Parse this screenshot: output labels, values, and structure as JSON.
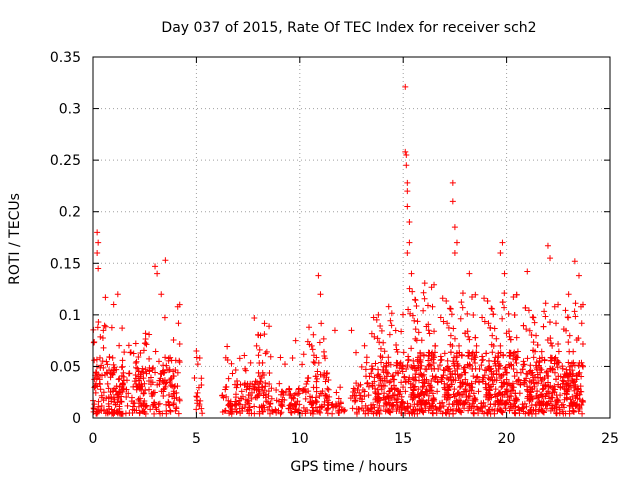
{
  "chart_data": {
    "type": "scatter",
    "title": "Day 037 of 2015, Rate Of TEC Index for receiver sch2",
    "xlabel": "GPS time / hours",
    "ylabel": "ROTI / TECUs",
    "xlim": [
      0,
      25
    ],
    "ylim": [
      0,
      0.35
    ],
    "xticks": [
      0,
      5,
      10,
      15,
      20,
      25
    ],
    "yticks": [
      0,
      0.05,
      0.1,
      0.15,
      0.2,
      0.25,
      0.3,
      0.35
    ],
    "grid": true,
    "marker": "+",
    "color": "#ff0000",
    "notable_points": [
      {
        "x": 0.2,
        "y": 0.18
      },
      {
        "x": 0.25,
        "y": 0.17
      },
      {
        "x": 0.2,
        "y": 0.16
      },
      {
        "x": 0.25,
        "y": 0.145
      },
      {
        "x": 0.5,
        "y": 0.085
      },
      {
        "x": 0.6,
        "y": 0.117
      },
      {
        "x": 1.0,
        "y": 0.11
      },
      {
        "x": 1.2,
        "y": 0.12
      },
      {
        "x": 3.0,
        "y": 0.147
      },
      {
        "x": 3.1,
        "y": 0.14
      },
      {
        "x": 3.5,
        "y": 0.153
      },
      {
        "x": 3.3,
        "y": 0.12
      },
      {
        "x": 10.9,
        "y": 0.138
      },
      {
        "x": 11.0,
        "y": 0.12
      },
      {
        "x": 13.8,
        "y": 0.1
      },
      {
        "x": 14.3,
        "y": 0.108
      },
      {
        "x": 15.1,
        "y": 0.321
      },
      {
        "x": 15.1,
        "y": 0.258
      },
      {
        "x": 15.15,
        "y": 0.255
      },
      {
        "x": 15.15,
        "y": 0.245
      },
      {
        "x": 15.2,
        "y": 0.228
      },
      {
        "x": 15.2,
        "y": 0.22
      },
      {
        "x": 15.2,
        "y": 0.205
      },
      {
        "x": 15.3,
        "y": 0.19
      },
      {
        "x": 15.3,
        "y": 0.17
      },
      {
        "x": 15.2,
        "y": 0.16
      },
      {
        "x": 15.4,
        "y": 0.14
      },
      {
        "x": 17.4,
        "y": 0.228
      },
      {
        "x": 17.4,
        "y": 0.21
      },
      {
        "x": 17.5,
        "y": 0.185
      },
      {
        "x": 17.5,
        "y": 0.16
      },
      {
        "x": 17.6,
        "y": 0.17
      },
      {
        "x": 18.2,
        "y": 0.14
      },
      {
        "x": 19.8,
        "y": 0.17
      },
      {
        "x": 19.7,
        "y": 0.16
      },
      {
        "x": 19.9,
        "y": 0.14
      },
      {
        "x": 21.0,
        "y": 0.142
      },
      {
        "x": 22.0,
        "y": 0.167
      },
      {
        "x": 22.1,
        "y": 0.155
      },
      {
        "x": 23.3,
        "y": 0.152
      },
      {
        "x": 23.5,
        "y": 0.138
      },
      {
        "x": 23.0,
        "y": 0.12
      },
      {
        "x": 7.8,
        "y": 0.097
      },
      {
        "x": 8.1,
        "y": 0.08
      },
      {
        "x": 9.8,
        "y": 0.075
      },
      {
        "x": 11.7,
        "y": 0.085
      },
      {
        "x": 12.5,
        "y": 0.085
      },
      {
        "x": 5.0,
        "y": 0.065
      }
    ],
    "segments": [
      {
        "t0": 0.0,
        "t1": 1.5,
        "density": 7,
        "base": 0.055,
        "peak": 0.09
      },
      {
        "t0": 1.5,
        "t1": 3.0,
        "density": 5,
        "base": 0.045,
        "peak": 0.08
      },
      {
        "t0": 3.0,
        "t1": 4.2,
        "density": 5,
        "base": 0.055,
        "peak": 0.11
      },
      {
        "t0": 4.9,
        "t1": 5.3,
        "density": 3,
        "base": 0.035,
        "peak": 0.06
      },
      {
        "t0": 6.2,
        "t1": 7.6,
        "density": 4,
        "base": 0.03,
        "peak": 0.07
      },
      {
        "t0": 7.6,
        "t1": 8.6,
        "density": 5,
        "base": 0.04,
        "peak": 0.09
      },
      {
        "t0": 8.6,
        "t1": 10.2,
        "density": 3,
        "base": 0.025,
        "peak": 0.06
      },
      {
        "t0": 10.2,
        "t1": 11.4,
        "density": 5,
        "base": 0.04,
        "peak": 0.09
      },
      {
        "t0": 11.4,
        "t1": 12.2,
        "density": 2,
        "base": 0.015,
        "peak": 0.03
      },
      {
        "t0": 12.4,
        "t1": 13.2,
        "density": 3,
        "base": 0.03,
        "peak": 0.07
      },
      {
        "t0": 13.2,
        "t1": 15.0,
        "density": 7,
        "base": 0.05,
        "peak": 0.1
      },
      {
        "t0": 15.0,
        "t1": 16.5,
        "density": 9,
        "base": 0.06,
        "peak": 0.13
      },
      {
        "t0": 16.5,
        "t1": 18.5,
        "density": 9,
        "base": 0.06,
        "peak": 0.12
      },
      {
        "t0": 18.5,
        "t1": 20.5,
        "density": 10,
        "base": 0.06,
        "peak": 0.12
      },
      {
        "t0": 20.5,
        "t1": 22.5,
        "density": 9,
        "base": 0.055,
        "peak": 0.11
      },
      {
        "t0": 22.5,
        "t1": 23.7,
        "density": 8,
        "base": 0.05,
        "peak": 0.11
      }
    ]
  }
}
